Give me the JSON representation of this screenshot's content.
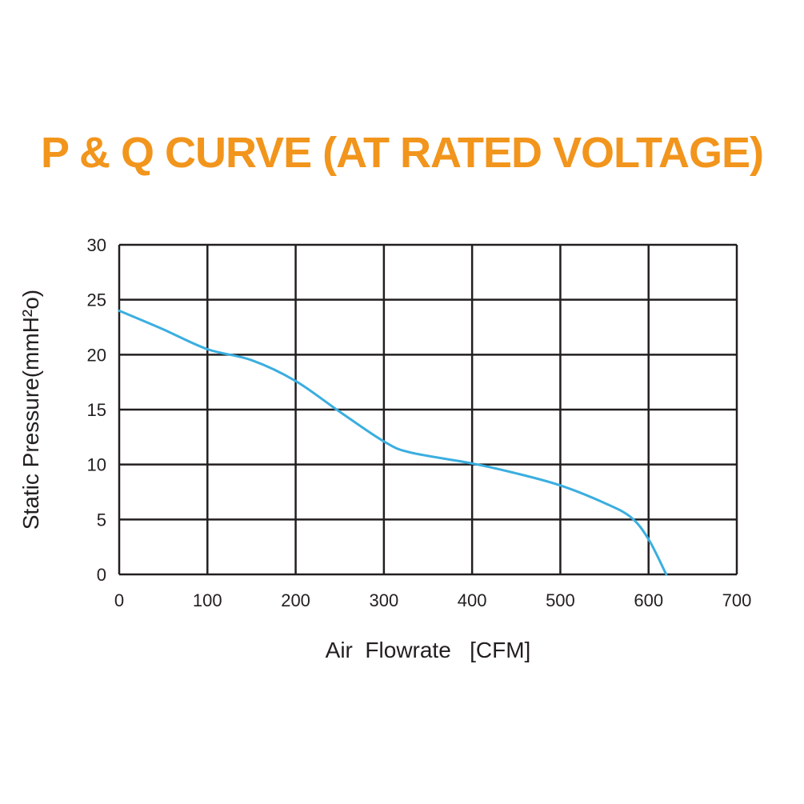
{
  "title": "P & Q CURVE (AT RATED VOLTAGE)",
  "colors": {
    "title": "#f2951c",
    "curve": "#3aaee0",
    "grid": "#231f20",
    "text": "#231f20"
  },
  "chart_data": {
    "type": "line",
    "xlabel": "Air  Flowrate   [CFM]",
    "ylabel": "Static Pressure(mmH²o)",
    "xlim": [
      0,
      700
    ],
    "ylim": [
      0,
      30
    ],
    "xticks": [
      "0",
      "100",
      "200",
      "300",
      "400",
      "500",
      "600",
      "700"
    ],
    "yticks": [
      "0",
      "5",
      "10",
      "15",
      "20",
      "25",
      "30"
    ],
    "grid": true,
    "series": [
      {
        "x": [
          0,
          50,
          100,
          150,
          200,
          250,
          300,
          330,
          400,
          450,
          500,
          550,
          580,
          600,
          620
        ],
        "y": [
          24,
          22.3,
          20.5,
          19.5,
          17.6,
          14.8,
          12.1,
          11.1,
          10.1,
          9.2,
          8.1,
          6.5,
          5.2,
          3.2,
          0
        ]
      }
    ]
  }
}
